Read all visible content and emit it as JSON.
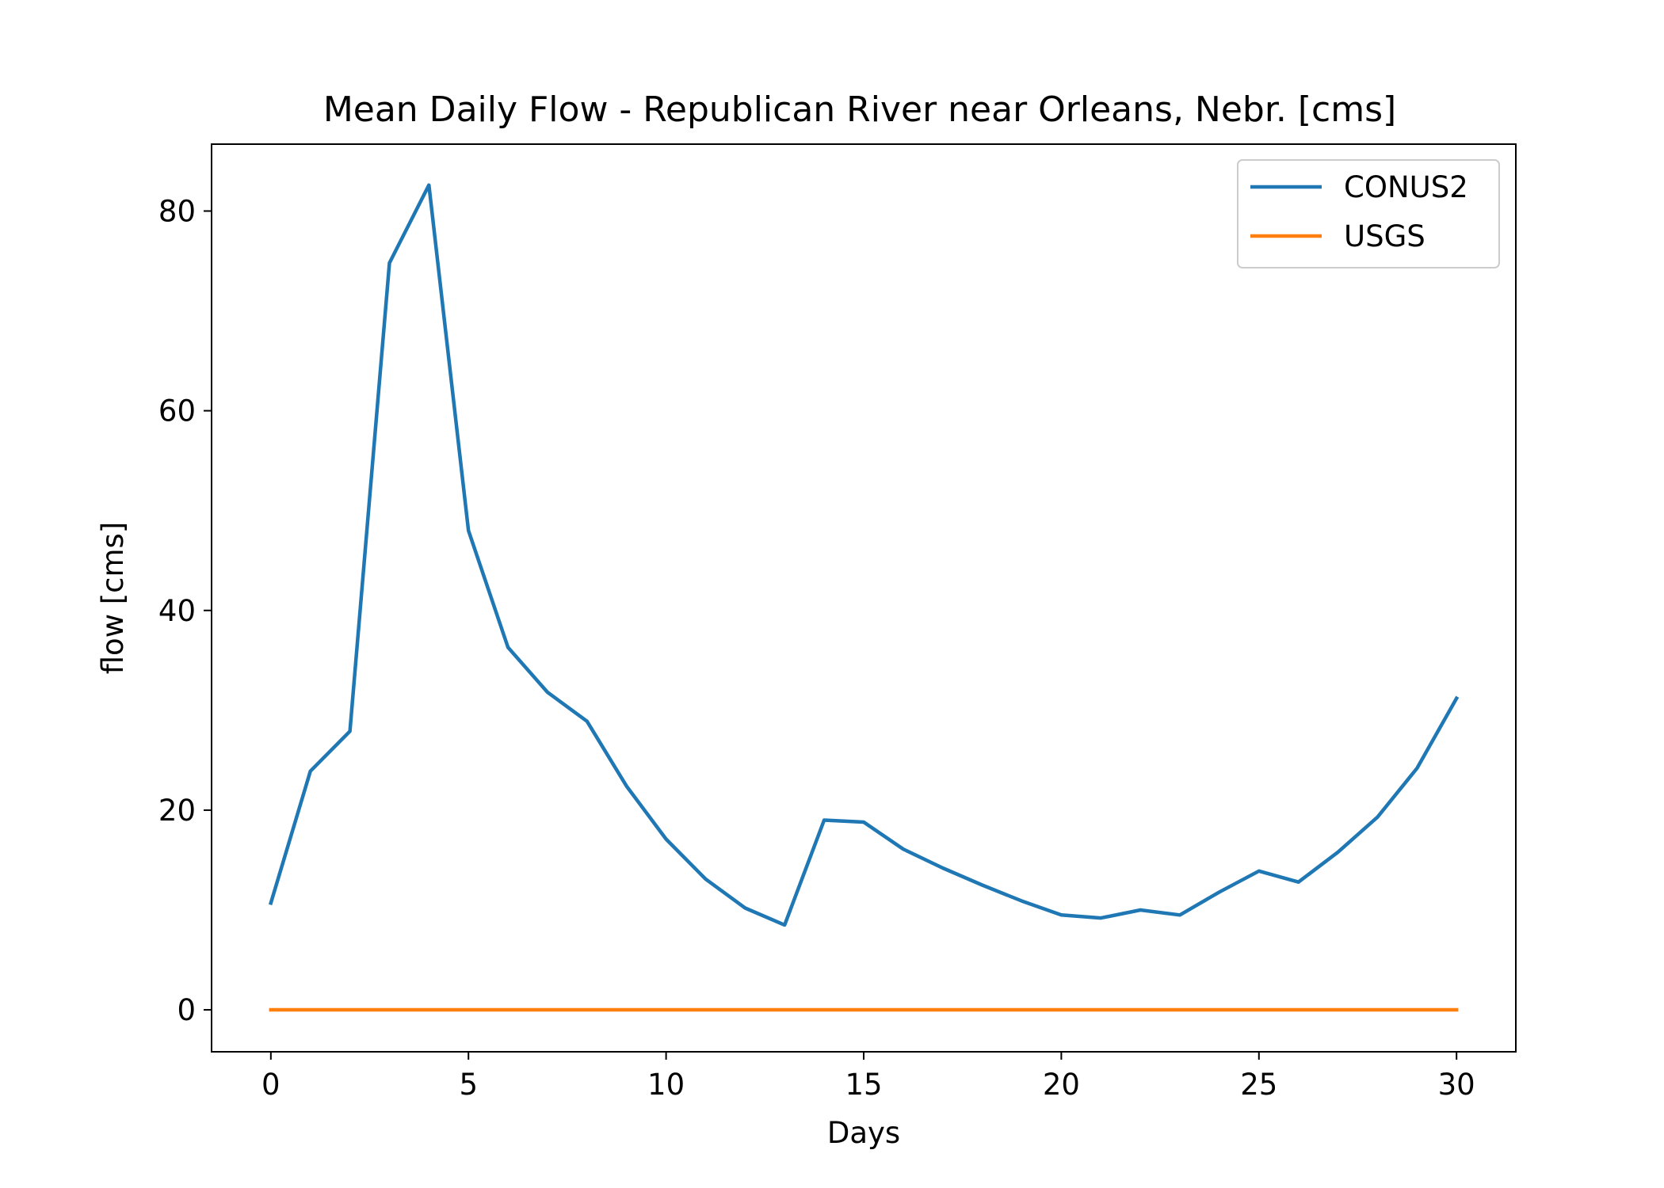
{
  "chart_data": {
    "type": "line",
    "title": "Mean Daily Flow - Republican River near Orleans, Nebr. [cms]",
    "xlabel": "Days",
    "ylabel": "flow [cms]",
    "xlim": [
      -1.5,
      31.5
    ],
    "ylim": [
      -4.2,
      86.7
    ],
    "xticks": [
      0,
      5,
      10,
      15,
      20,
      25,
      30
    ],
    "yticks": [
      0,
      20,
      40,
      60,
      80
    ],
    "grid": false,
    "legend_position": "top-right",
    "x": [
      0,
      1,
      2,
      3,
      4,
      5,
      6,
      7,
      8,
      9,
      10,
      11,
      12,
      13,
      14,
      15,
      16,
      17,
      18,
      19,
      20,
      21,
      22,
      23,
      24,
      25,
      26,
      27,
      28,
      29,
      30
    ],
    "series": [
      {
        "name": "CONUS2",
        "color": "#1f77b4",
        "values": [
          10.7,
          23.9,
          27.9,
          74.8,
          82.6,
          48.0,
          36.3,
          31.8,
          28.9,
          22.4,
          17.1,
          13.1,
          10.2,
          8.5,
          19.0,
          18.8,
          16.1,
          14.2,
          12.5,
          10.9,
          9.5,
          9.2,
          10.0,
          9.5,
          11.8,
          13.9,
          12.8,
          15.8,
          19.3,
          24.2,
          31.2
        ]
      },
      {
        "name": "USGS",
        "color": "#ff7f0e",
        "values": [
          0,
          0,
          0,
          0,
          0,
          0,
          0,
          0,
          0,
          0,
          0,
          0,
          0,
          0,
          0,
          0,
          0,
          0,
          0,
          0,
          0,
          0,
          0,
          0,
          0,
          0,
          0,
          0,
          0,
          0,
          0
        ]
      }
    ]
  }
}
